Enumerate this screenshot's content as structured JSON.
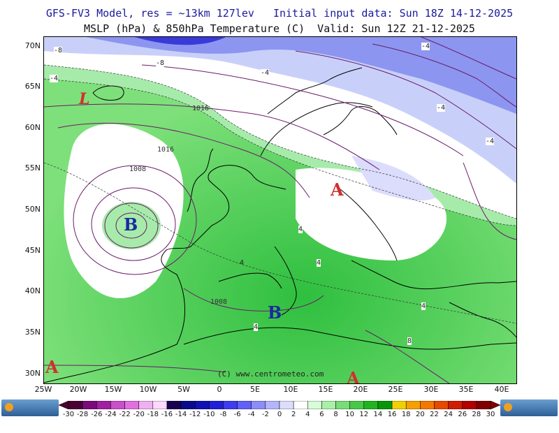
{
  "header": {
    "line1": "GFS-FV3 Model, res = ~13km 127lev   Initial input data: Sun 18Z 14-12-2025",
    "line2": "MSLP (hPa) & 850hPa Temperature (C)  Valid: Sun 12Z 21-12-2025"
  },
  "map": {
    "lat_labels": [
      "70N",
      "65N",
      "60N",
      "55N",
      "50N",
      "45N",
      "40N",
      "35N",
      "30N"
    ],
    "lon_labels": [
      "25W",
      "20W",
      "15W",
      "10W",
      "5W",
      "0",
      "5E",
      "10E",
      "15E",
      "20E",
      "25E",
      "30E",
      "35E",
      "40E"
    ],
    "pressure_labels": [
      "1016",
      "1016",
      "1008",
      "1008"
    ],
    "temp_labels": [
      "-8",
      "-8",
      "-4",
      "-4",
      "-4",
      "-4",
      "-4",
      "4",
      "4",
      "4",
      "4",
      "4",
      "8"
    ],
    "systems": [
      {
        "symbol": "B",
        "type": "low"
      },
      {
        "symbol": "B",
        "type": "low"
      },
      {
        "symbol": "A",
        "type": "high"
      },
      {
        "symbol": "A",
        "type": "high"
      },
      {
        "symbol": "A",
        "type": "high"
      },
      {
        "symbol": "L",
        "type": "low"
      }
    ],
    "copyright": "(C) www.centrometeo.com"
  },
  "legend": {
    "values": [
      "-30",
      "-28",
      "-26",
      "-24",
      "-22",
      "-20",
      "-18",
      "-16",
      "-14",
      "-12",
      "-10",
      "-8",
      "-6",
      "-4",
      "-2",
      "0",
      "2",
      "4",
      "6",
      "8",
      "10",
      "12",
      "14",
      "16",
      "18",
      "20",
      "22",
      "24",
      "26",
      "28",
      "30"
    ],
    "colors": [
      "#4b0032",
      "#7a0a7a",
      "#a020a0",
      "#c850c8",
      "#e070e0",
      "#f0b0f0",
      "#ffd8ff",
      "#1a0050",
      "#0a0a8c",
      "#1010b4",
      "#2020d8",
      "#3c3cf0",
      "#6060f8",
      "#8c8cf8",
      "#b4b4fc",
      "#dcdcfc",
      "#ffffff",
      "#d8fcd8",
      "#a8f0a8",
      "#78dc78",
      "#48c848",
      "#20b420",
      "#089608",
      "#f0d000",
      "#f4a000",
      "#f47800",
      "#e84800",
      "#d01c00",
      "#b00000",
      "#800000"
    ],
    "logo_text": "centrometeo"
  }
}
